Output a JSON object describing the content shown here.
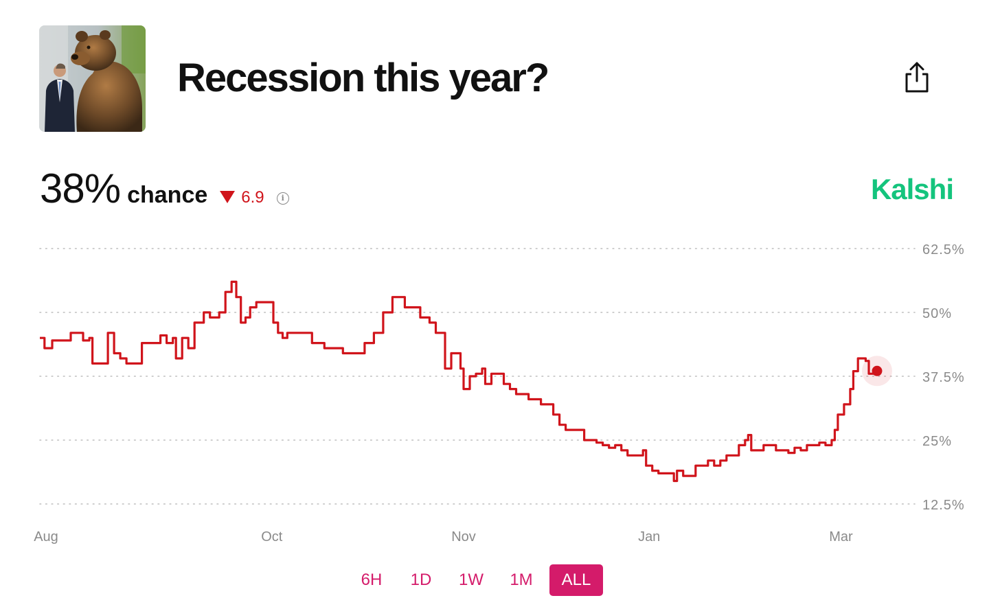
{
  "header": {
    "title": "Recession this year?"
  },
  "stats": {
    "probability": "38%",
    "probability_label": "chance",
    "change": "6.9",
    "change_direction": "down"
  },
  "brand": {
    "name": "Kalshi",
    "color": "#14c47d"
  },
  "icons": {
    "share": "share-icon",
    "info": "info-icon",
    "thumbnail": "bear-statue-image"
  },
  "colors": {
    "line": "#d0141b",
    "accent": "#d41b6a",
    "grid": "#bdbdbd",
    "axis_text": "#8a8a8a"
  },
  "range_buttons": [
    {
      "label": "6H",
      "active": false
    },
    {
      "label": "1D",
      "active": false
    },
    {
      "label": "1W",
      "active": false
    },
    {
      "label": "1M",
      "active": false
    },
    {
      "label": "ALL",
      "active": true
    }
  ],
  "chart_data": {
    "type": "line",
    "title": "",
    "xlabel": "",
    "ylabel": "",
    "y_ticks": [
      "62.5%",
      "50%",
      "37.5%",
      "25%",
      "12.5%"
    ],
    "y_tick_values": [
      62.5,
      50,
      37.5,
      25,
      12.5
    ],
    "x_ticks": [
      "Aug",
      "Oct",
      "Nov",
      "Jan",
      "Mar"
    ],
    "x_tick_positions": [
      0.2,
      7.5,
      13.7,
      19.7,
      25.9
    ],
    "ylim": [
      12.5,
      62.5
    ],
    "xlim": [
      0,
      28.2
    ],
    "grid": true,
    "grid_style": "dotted-horizontal",
    "y_axis_side": "right",
    "x_unit": "weeks",
    "current_value": 38,
    "series": [
      {
        "values": [
          [
            0.0,
            45
          ],
          [
            0.15,
            43
          ],
          [
            0.4,
            44.5
          ],
          [
            0.8,
            44.5
          ],
          [
            1.0,
            46
          ],
          [
            1.3,
            46
          ],
          [
            1.4,
            44.5
          ],
          [
            1.6,
            45
          ],
          [
            1.7,
            40
          ],
          [
            2.0,
            40
          ],
          [
            2.2,
            46
          ],
          [
            2.4,
            42
          ],
          [
            2.6,
            41
          ],
          [
            2.8,
            40
          ],
          [
            3.2,
            40
          ],
          [
            3.3,
            44
          ],
          [
            3.7,
            44
          ],
          [
            3.9,
            45.5
          ],
          [
            4.1,
            44
          ],
          [
            4.3,
            45
          ],
          [
            4.4,
            41
          ],
          [
            4.6,
            45
          ],
          [
            4.8,
            43
          ],
          [
            5.0,
            48
          ],
          [
            5.2,
            48
          ],
          [
            5.3,
            50
          ],
          [
            5.5,
            49
          ],
          [
            5.7,
            49
          ],
          [
            5.8,
            50
          ],
          [
            6.0,
            54
          ],
          [
            6.2,
            56
          ],
          [
            6.35,
            53
          ],
          [
            6.5,
            48
          ],
          [
            6.65,
            49
          ],
          [
            6.8,
            51
          ],
          [
            7.0,
            52
          ],
          [
            7.4,
            52
          ],
          [
            7.55,
            48
          ],
          [
            7.7,
            46
          ],
          [
            7.85,
            45
          ],
          [
            8.0,
            46
          ],
          [
            8.6,
            46
          ],
          [
            8.8,
            44
          ],
          [
            9.2,
            43
          ],
          [
            9.6,
            43
          ],
          [
            9.8,
            42
          ],
          [
            10.2,
            42
          ],
          [
            10.5,
            44
          ],
          [
            10.8,
            46
          ],
          [
            11.1,
            50
          ],
          [
            11.4,
            53
          ],
          [
            11.6,
            53
          ],
          [
            11.8,
            51
          ],
          [
            12.1,
            51
          ],
          [
            12.3,
            49
          ],
          [
            12.6,
            48
          ],
          [
            12.8,
            46
          ],
          [
            13.0,
            46
          ],
          [
            13.1,
            39
          ],
          [
            13.3,
            42
          ],
          [
            13.5,
            42
          ],
          [
            13.6,
            39
          ],
          [
            13.7,
            35
          ],
          [
            13.9,
            37.5
          ],
          [
            14.1,
            38
          ],
          [
            14.3,
            39
          ],
          [
            14.4,
            36
          ],
          [
            14.6,
            38
          ],
          [
            14.8,
            38
          ],
          [
            15.0,
            36
          ],
          [
            15.2,
            35
          ],
          [
            15.4,
            34
          ],
          [
            15.6,
            34
          ],
          [
            15.8,
            33
          ],
          [
            16.0,
            33
          ],
          [
            16.2,
            32
          ],
          [
            16.4,
            32
          ],
          [
            16.6,
            30
          ],
          [
            16.8,
            28
          ],
          [
            17.0,
            27
          ],
          [
            17.4,
            27
          ],
          [
            17.6,
            25
          ],
          [
            17.8,
            25
          ],
          [
            18.0,
            24.5
          ],
          [
            18.2,
            24
          ],
          [
            18.4,
            23.5
          ],
          [
            18.6,
            24
          ],
          [
            18.8,
            23
          ],
          [
            19.0,
            22
          ],
          [
            19.4,
            22
          ],
          [
            19.5,
            23
          ],
          [
            19.6,
            20
          ],
          [
            19.8,
            19
          ],
          [
            20.0,
            18.5
          ],
          [
            20.3,
            18.5
          ],
          [
            20.5,
            17
          ],
          [
            20.6,
            19
          ],
          [
            20.8,
            18
          ],
          [
            21.0,
            18
          ],
          [
            21.2,
            20
          ],
          [
            21.4,
            20
          ],
          [
            21.6,
            21
          ],
          [
            21.8,
            20
          ],
          [
            22.0,
            21
          ],
          [
            22.2,
            22
          ],
          [
            22.4,
            22
          ],
          [
            22.6,
            24
          ],
          [
            22.8,
            25
          ],
          [
            22.9,
            26
          ],
          [
            23.0,
            23
          ],
          [
            23.2,
            23
          ],
          [
            23.4,
            24
          ],
          [
            23.6,
            24
          ],
          [
            23.8,
            23
          ],
          [
            24.0,
            23
          ],
          [
            24.2,
            22.5
          ],
          [
            24.4,
            23.5
          ],
          [
            24.6,
            23
          ],
          [
            24.8,
            24
          ],
          [
            25.0,
            24
          ],
          [
            25.2,
            24.5
          ],
          [
            25.4,
            24
          ],
          [
            25.6,
            25
          ],
          [
            25.7,
            27
          ],
          [
            25.8,
            30
          ],
          [
            26.0,
            32
          ],
          [
            26.2,
            35
          ],
          [
            26.3,
            38.5
          ],
          [
            26.45,
            41
          ],
          [
            26.55,
            41
          ],
          [
            26.7,
            40.5
          ],
          [
            26.8,
            38
          ],
          [
            27.0,
            38
          ]
        ]
      }
    ]
  }
}
